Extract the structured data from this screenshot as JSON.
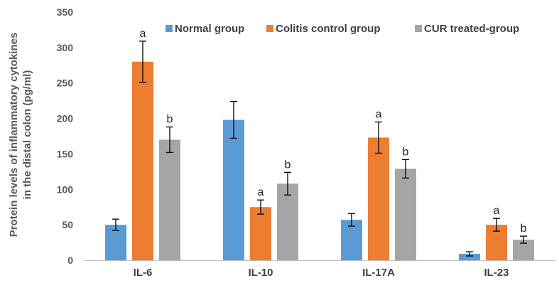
{
  "chart_data": {
    "type": "bar",
    "title": "",
    "xlabel": "",
    "ylabel_lines": [
      "Protein levels of inflammatory cytokines",
      "in the distal colon (pg/ml)"
    ],
    "categories": [
      "IL-6",
      "IL-10",
      "IL-17A",
      "IL-23"
    ],
    "ylim": [
      0,
      350
    ],
    "yticks": [
      0,
      50,
      100,
      150,
      200,
      250,
      300,
      350
    ],
    "grid": false,
    "legend_position": "top",
    "series": [
      {
        "name": "Normal group",
        "color": "#5b9bd5",
        "values": [
          50,
          198,
          57,
          9
        ],
        "errors": [
          8,
          26,
          9,
          3
        ],
        "labels": [
          "",
          "",
          "",
          ""
        ]
      },
      {
        "name": "Colitis control group",
        "color": "#ed7d31",
        "values": [
          280,
          75,
          173,
          50
        ],
        "errors": [
          29,
          10,
          22,
          9
        ],
        "labels": [
          "a",
          "a",
          "a",
          "a"
        ]
      },
      {
        "name": "CUR treated-group",
        "color": "#a5a5a5",
        "values": [
          170,
          108,
          129,
          29
        ],
        "errors": [
          18,
          16,
          13,
          5
        ],
        "labels": [
          "b",
          "b",
          "b",
          "b"
        ]
      }
    ]
  }
}
